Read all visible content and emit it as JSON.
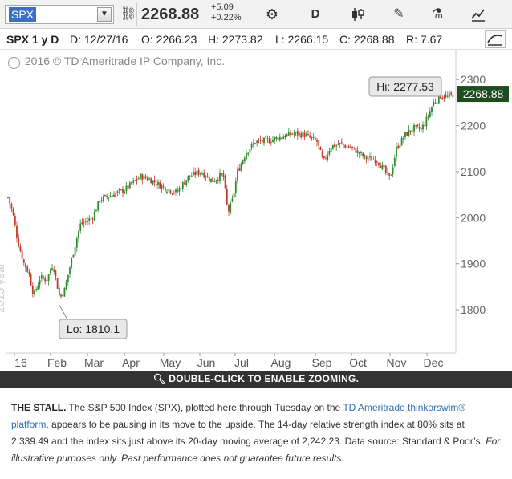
{
  "toolbar": {
    "symbol": "SPX",
    "dropdown_icon": "chevron-down-icon",
    "price": "2268.88",
    "change_abs": "+5.09",
    "change_pct": "+0.22%",
    "period_label": "D",
    "icons": [
      "link-icon",
      "gear-icon",
      "candlestick-icon",
      "pencil-icon",
      "flask-icon",
      "drawing-icon",
      "studies-icon"
    ]
  },
  "info": {
    "ticker": "SPX 1 y D",
    "date": "D: 12/27/16",
    "open": "O: 2266.23",
    "high": "H: 2273.82",
    "low": "L: 2266.15",
    "close": "C: 2268.88",
    "range": "R: 7.67"
  },
  "watermark": {
    "copyright": "2016 © TD Ameritrade IP Company, Inc.",
    "year": "2015 year"
  },
  "chart_data": {
    "type": "candlestick",
    "title": "",
    "xlabel": "",
    "ylabel": "",
    "ylim": [
      1720,
      2330
    ],
    "y_ticks": [
      1800,
      1900,
      2000,
      2100,
      2200,
      2300
    ],
    "x_ticks": [
      "16",
      "Feb",
      "Mar",
      "Apr",
      "May",
      "Jun",
      "Jul",
      "Aug",
      "Sep",
      "Oct",
      "Nov",
      "Dec"
    ],
    "last_price_label": "2268.88",
    "annotations": [
      {
        "text": "Hi: 2277.53",
        "value": 2277.53,
        "month": "Dec"
      },
      {
        "text": "Lo: 1810.1",
        "value": 1810.1,
        "month": "Feb"
      }
    ],
    "series": [
      {
        "values_by_month_approx": [
          {
            "month": "Dec-2015 end",
            "close": 2044
          },
          {
            "month": "Jan",
            "close": 1940
          },
          {
            "month": "Feb",
            "close": 1932
          },
          {
            "month": "Mar",
            "close": 2060
          },
          {
            "month": "Apr",
            "close": 2065
          },
          {
            "month": "May",
            "close": 2097
          },
          {
            "month": "Jun",
            "close": 2098
          },
          {
            "month": "Jul",
            "close": 2174
          },
          {
            "month": "Aug",
            "close": 2171
          },
          {
            "month": "Sep",
            "close": 2168
          },
          {
            "month": "Oct",
            "close": 2126
          },
          {
            "month": "Nov",
            "close": 2199
          },
          {
            "month": "Dec",
            "close": 2268.88
          }
        ]
      }
    ],
    "colors": {
      "up": "#2e8b2e",
      "down": "#c0392b",
      "last_badge_bg": "#1f4d1f"
    }
  },
  "zoom_bar": {
    "icon": "magnifier-icon",
    "text": "DOUBLE-CLICK TO ENABLE ZOOMING."
  },
  "caption": {
    "bold": "THE STALL.",
    "text1": " The S&P 500 Index (SPX), plotted here through Tuesday on the ",
    "link": "TD Ameritrade thinkorswim® platform",
    "text2": ", appears to be pausing in its move to the upside. The 14-day relative strength index at 80% sits at 2,339.49 and the index sits just above its 20-day moving average of 2,242.23. Data source: Standard & Poor’s. ",
    "italic": "For illustrative purposes only. Past performance does not guarantee future results."
  }
}
